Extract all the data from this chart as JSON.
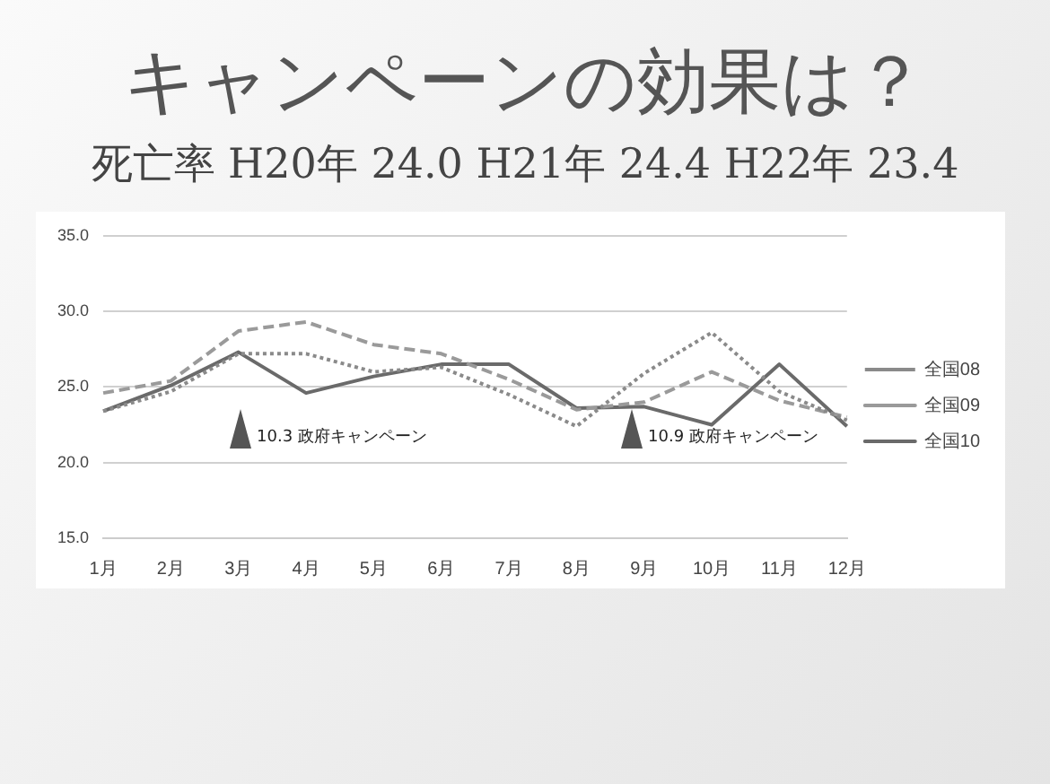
{
  "chart_data": {
    "type": "line",
    "title": "キャンペーンの効果は？",
    "subtitle": "死亡率 H20年 24.0 H21年 24.4 H22年 23.4",
    "categories": [
      "1月",
      "2月",
      "3月",
      "4月",
      "5月",
      "6月",
      "7月",
      "8月",
      "9月",
      "10月",
      "11月",
      "12月"
    ],
    "series": [
      {
        "name": "全国08",
        "color": "#8a8a8a",
        "line_style": "dotted",
        "values": [
          23.4,
          24.7,
          27.2,
          27.2,
          26.0,
          26.3,
          24.5,
          22.4,
          25.9,
          28.6,
          24.7,
          22.8
        ]
      },
      {
        "name": "全国09",
        "color": "#9a9a9a",
        "line_style": "dashed",
        "values": [
          24.6,
          25.4,
          28.7,
          29.3,
          27.8,
          27.2,
          25.5,
          23.5,
          24.0,
          26.0,
          24.1,
          23.0
        ]
      },
      {
        "name": "全国10",
        "color": "#6a6a6a",
        "line_style": "solid",
        "values": [
          23.4,
          25.1,
          27.3,
          24.6,
          25.7,
          26.5,
          26.5,
          23.6,
          23.7,
          22.5,
          26.5,
          22.4
        ]
      }
    ],
    "ylim": [
      15,
      35
    ],
    "yticks": [
      {
        "value": 15,
        "label": "15.0"
      },
      {
        "value": 20,
        "label": "20.0"
      },
      {
        "value": 25,
        "label": "25.0"
      },
      {
        "value": 30,
        "label": "30.0"
      },
      {
        "value": 35,
        "label": "35.0"
      }
    ],
    "grid": "y",
    "legend": "right",
    "marker": "none",
    "annotations": [
      "10.3 政府キャンペーン",
      "10.9 政府キャンペーン"
    ]
  }
}
